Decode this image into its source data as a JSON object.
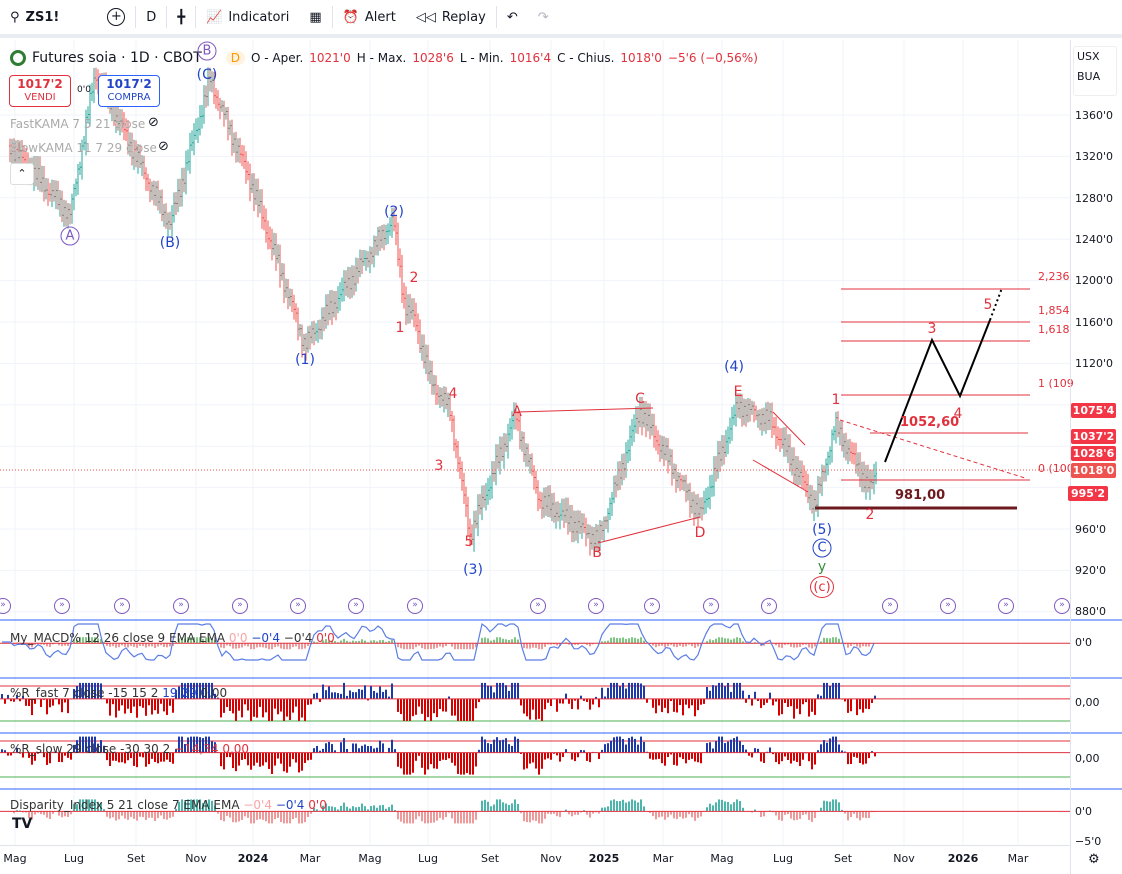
{
  "toolbar": {
    "symbol": "ZS1!",
    "interval": "D",
    "indicators": "Indicatori",
    "alert": "Alert",
    "replay": "Replay"
  },
  "legend": {
    "title": "Futures soia · 1D · CBOT",
    "badge": "D",
    "open_label": "O - Aper.",
    "open": "1021'0",
    "high_label": "H - Max.",
    "high": "1028'6",
    "low_label": "L - Min.",
    "low": "1016'4",
    "close_label": "C - Chius.",
    "close": "1018'0",
    "change": "−5'6 (−0,56%)"
  },
  "trade": {
    "sell_price": "1017'2",
    "sell_label": "VENDI",
    "spread": "0'0",
    "buy_price": "1017'2",
    "buy_label": "COMPRA"
  },
  "studies": {
    "fast_kama": "FastKAMA 7 5 21 close",
    "slow_kama": "SlowKAMA 11 7 29 close"
  },
  "currency": "USX",
  "unit": "BUA",
  "price_axis": [
    "1360'0",
    "1320'0",
    "1280'0",
    "1240'0",
    "1200'0",
    "1160'0",
    "1120'0",
    "960'0",
    "920'0",
    "880'0"
  ],
  "price_tags": [
    "1075'4",
    "1037'2",
    "1028'6",
    "1018'0",
    "995'2"
  ],
  "time_axis": [
    "Mag",
    "Lug",
    "Set",
    "Nov",
    "2024",
    "Mar",
    "Mag",
    "Lug",
    "Set",
    "Nov",
    "2025",
    "Mar",
    "Mag",
    "Lug",
    "Set",
    "Nov",
    "2026",
    "Mar"
  ],
  "waves": {
    "blue": [
      "(C)",
      "(B)",
      "(2)",
      "(1)",
      "(3)",
      "(4)",
      "(5)",
      "C"
    ],
    "purple": [
      "A",
      "B"
    ],
    "red": [
      "2",
      "1",
      "4",
      "3",
      "5",
      "A",
      "C",
      "B",
      "D",
      "E",
      "1",
      "2",
      "3",
      "4",
      "5",
      "(c)"
    ],
    "green": [
      "y"
    ]
  },
  "fib": {
    "l2236": "2,236",
    "l1854": "1,854",
    "l1618": "1,618",
    "l1": "1 (109",
    "l0": "0 (100",
    "target": "1052,60",
    "support": "981,00"
  },
  "panes": {
    "macd": {
      "title": "My_MACD% 12 26 close 9 EMA EMA",
      "v1": "0'0",
      "v2": "−0'4",
      "v3": "−0'4",
      "v4": "0'0",
      "axis": "0'0"
    },
    "rfast": {
      "title": "%R_fast 7 close -15 15 2",
      "v1": "19,29",
      "v2": "0,00",
      "axis": "0,00"
    },
    "rslow": {
      "title": "%R_slow 29 close -30 30 2",
      "v1": "−14,34",
      "v2": "0,00",
      "axis": "0,00"
    },
    "disp": {
      "title": "Disparity_Index 5 21 close 7 EMA EMA",
      "v1": "−0'4",
      "v2": "−0'4",
      "v3": "0'0",
      "axis": "0'0",
      "axis2": "−5'0"
    }
  },
  "chart_data": {
    "type": "candlestick",
    "symbol": "ZS1!",
    "interval": "1D",
    "waypoints": [
      [
        "2023-05",
        1330
      ],
      [
        "2023-07",
        1263
      ],
      [
        "2023-08",
        1400
      ],
      [
        "2023-10",
        1254
      ],
      [
        "2023-11",
        1394
      ],
      [
        "2023-12",
        1297
      ],
      [
        "2024-02",
        1138
      ],
      [
        "2024-05",
        1259
      ],
      [
        "2024-05",
        1175
      ],
      [
        "2024-06",
        1162
      ],
      [
        "2024-07",
        1104
      ],
      [
        "2024-07",
        1075
      ],
      [
        "2024-08",
        1027
      ],
      [
        "2024-08",
        954
      ],
      [
        "2024-09",
        1070
      ],
      [
        "2024-10",
        988
      ],
      [
        "2024-11",
        949
      ],
      [
        "2025-01",
        1075
      ],
      [
        "2025-03",
        973
      ],
      [
        "2025-05",
        1080
      ],
      [
        "2025-06",
        1065
      ],
      [
        "2025-08",
        983
      ],
      [
        "2025-08",
        1060
      ],
      [
        "2025-09",
        998
      ],
      [
        "2025-10",
        1018
      ]
    ],
    "projection": [
      1018,
      1145,
      1090,
      1165,
      1195
    ]
  }
}
